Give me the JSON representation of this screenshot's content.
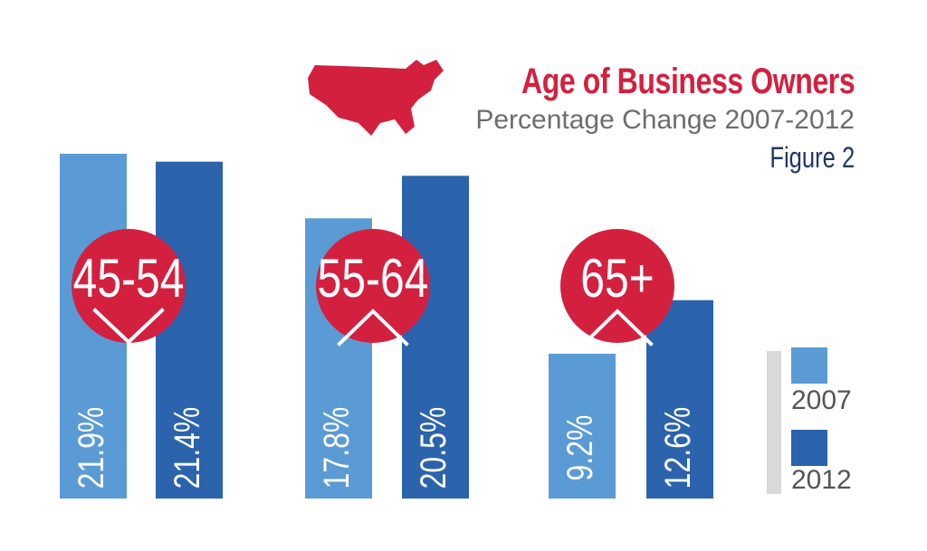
{
  "title": "Age of Business Owners",
  "subtitle": "Percentage Change 2007-2012",
  "figure_label": "Figure 2",
  "colors": {
    "accent": "#d4203f",
    "bar_2007": "#5b9bd5",
    "bar_2012": "#2b63ad",
    "navy": "#1f3864",
    "legend_bar": "#d9d9d9",
    "subtitle": "#6d6d6d"
  },
  "icons": {
    "map": "usa-map-icon"
  },
  "chart_data": {
    "type": "bar",
    "categories": [
      "45-54",
      "55-64",
      "65+"
    ],
    "category_trend": [
      "down",
      "up",
      "up"
    ],
    "series": [
      {
        "name": "2007",
        "values": [
          21.9,
          17.8,
          9.2
        ],
        "labels": [
          "21.9%",
          "17.8%",
          "9.2%"
        ]
      },
      {
        "name": "2012",
        "values": [
          21.4,
          20.5,
          12.6
        ],
        "labels": [
          "21.4%",
          "20.5%",
          "12.6%"
        ]
      }
    ],
    "ylim": [
      0,
      22.3
    ],
    "grid": false,
    "legend_position": "bottom-right",
    "title": "Age of Business Owners",
    "subtitle": "Percentage Change 2007-2012",
    "xlabel": "",
    "ylabel": ""
  }
}
